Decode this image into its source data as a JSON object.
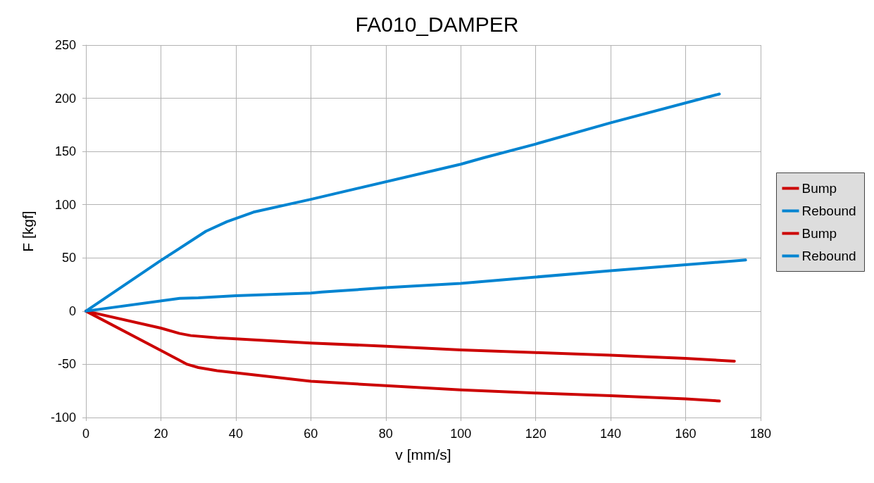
{
  "chart_data": {
    "type": "line",
    "title": "FA010_DAMPER",
    "xlabel": "v [mm/s]",
    "ylabel": "F [kgf]",
    "xlim": [
      0,
      180
    ],
    "xticks": [
      0,
      20,
      40,
      60,
      80,
      100,
      120,
      140,
      160,
      180
    ],
    "ylim": [
      -100,
      250
    ],
    "yticks": [
      -100,
      -50,
      0,
      50,
      100,
      150,
      200,
      250
    ],
    "grid": true,
    "legend": "right",
    "marker": "none",
    "line_style": "solid",
    "series": [
      {
        "name": "Bump",
        "color": "#cc0000",
        "x": [
          0,
          20,
          27,
          30,
          35,
          40,
          60,
          80,
          100,
          120,
          140,
          160,
          169
        ],
        "values": [
          0,
          -37,
          -50,
          -53,
          -56,
          -58,
          -66,
          -70,
          -74,
          -77,
          -79.5,
          -82.5,
          -84.5
        ]
      },
      {
        "name": "Rebound",
        "color": "#0084d1",
        "x": [
          0,
          20,
          32,
          37.6,
          44.7,
          60,
          100,
          106,
          120,
          140,
          169
        ],
        "values": [
          0,
          47.6,
          75,
          84,
          93,
          105,
          138,
          144,
          157,
          177,
          204
        ]
      },
      {
        "name": "Bump",
        "color": "#cc0000",
        "x": [
          0,
          20,
          25,
          28,
          35,
          60,
          80,
          100,
          120,
          140,
          160,
          173
        ],
        "values": [
          0,
          -16,
          -21,
          -23,
          -25,
          -30,
          -33,
          -36.5,
          -39,
          -41.5,
          -44.5,
          -47
        ]
      },
      {
        "name": "Rebound",
        "color": "#0084d1",
        "x": [
          0,
          25,
          30,
          40,
          60,
          63,
          80,
          100,
          120,
          140,
          160,
          176
        ],
        "values": [
          0,
          12,
          12.5,
          14.5,
          17,
          18,
          22,
          26,
          32,
          38,
          43.5,
          48
        ]
      }
    ]
  }
}
